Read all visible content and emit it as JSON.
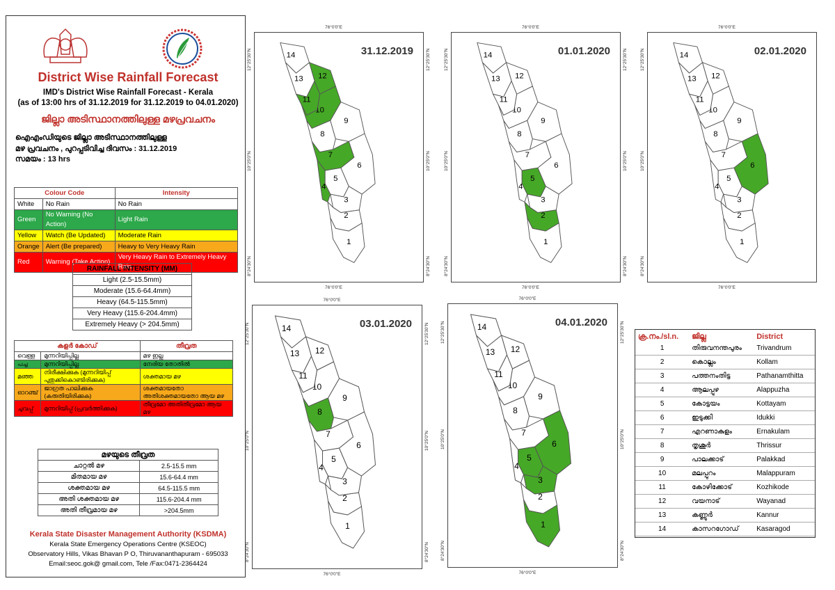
{
  "header": {
    "title": "District Wise Rainfall Forecast",
    "subtitle1": "IMD's District Wise Rainfall Forecast - Kerala",
    "subtitle2": "(as of 13:00 hrs of 31.12.2019  for 31.12.2019  to 04.01.2020)",
    "mal_title": "ജില്ലാ അടിസ്ഥാനത്തിലുള്ള മഴപ്രവചനം",
    "mal_info1": "ഐഎംഡിയുടെ  ജില്ലാ  അടിസ്ഥാനത്തിലുള്ള",
    "mal_info2": "മഴ  പ്രവചനം  , പുറപ്പടിവിച്ച   ദിവസം : 31.12.2019",
    "mal_info3": "സമയം : 13  hrs"
  },
  "colour_code": {
    "head_code": "Colour Code",
    "head_intensity": "Intensity",
    "rows": [
      {
        "c": "White",
        "code": "No Rain",
        "intensity": "No Rain",
        "bg": "#ffffff",
        "fg": "#000000"
      },
      {
        "c": "Green",
        "code": "No Warning (No Action)",
        "intensity": "Light Rain",
        "bg": "#2da84a",
        "fg": "#ffffff"
      },
      {
        "c": "Yellow",
        "code": "Watch (Be Updated)",
        "intensity": "Moderate Rain",
        "bg": "#ffff00",
        "fg": "#000000"
      },
      {
        "c": "Orange",
        "code": "Alert (Be prepared)",
        "intensity": "Heavy to Very Heavy Rain",
        "bg": "#f7a81b",
        "fg": "#000000"
      },
      {
        "c": "Red",
        "code": "Warning (Take Action)",
        "intensity": "Very Heavy Rain to Extremely Heavy Rain",
        "bg": "#ff0000",
        "fg": "#ffffff"
      }
    ]
  },
  "rainfall_intensity": {
    "head": "RAINFALL INTENSITY (MM)",
    "rows": [
      "Light (2.5-15.5mm)",
      "Moderate (15.6-64.4mm)",
      "Heavy (64.5-115.5mm)",
      "Very Heavy (115.6-204.4mm)",
      "Extremely Heavy (> 204.5mm)"
    ]
  },
  "mal_colour_code": {
    "head_code": "കളർ കോഡ്",
    "head_intensity": "തീവ്രത",
    "rows": [
      {
        "c": "വെള്ള",
        "code": "മുന്നറിയിപ്പില്ല",
        "intensity": "മഴ ഇല്ല",
        "bg": "#ffffff",
        "fg": "#000000"
      },
      {
        "c": "പച്ച",
        "code": "മുന്നറിയിപ്പില്ല",
        "intensity": "നേരിയ തോതിൽ",
        "bg": "#2da84a",
        "fg": "#000000"
      },
      {
        "c": "മഞ്ഞ",
        "code": "നിരീക്ഷിക്കുക (മുന്നറിയിപ്പ് പുതുക്കികൊണ്ടിരിക്കുക)",
        "intensity": "ശക്തമായ മഴ",
        "bg": "#ffff00",
        "fg": "#000000"
      },
      {
        "c": "ഓറഞ്ച്",
        "code": "ജാഗ്രത പാലിക്കുക (കരുതിയിരിക്കുക)",
        "intensity": "ശക്തമായതോ അതിശക്തമായതോ ആയ മഴ",
        "bg": "#f7a81b",
        "fg": "#000000"
      },
      {
        "c": "ചുവപ്പ്",
        "code": "മുന്നറിയിപ്പ് (പ്രവർത്തിക്കുക)",
        "intensity": "തീവ്രമോ അതിതീവ്രമോ ആയ മഴ",
        "bg": "#ff0000",
        "fg": "#000000"
      }
    ]
  },
  "mal_intensity": {
    "head": "മഴയുടെ തീവ്രത",
    "rows": [
      {
        "label": "ചാറ്റൽ മഴ",
        "value": "2.5-15.5 mm"
      },
      {
        "label": "മിതമായ മഴ",
        "value": "15.6-64.4 mm"
      },
      {
        "label": "ശക്തമായ മഴ",
        "value": "64.5-115.5 mm"
      },
      {
        "label": "അതി ശക്തമായ മഴ",
        "value": "115.6-204.4 mm"
      },
      {
        "label": "അതി തീവ്രമായ മഴ",
        "value": ">204.5mm"
      }
    ]
  },
  "footer": {
    "org": "Kerala State Disaster Management Authority (KSDMA)",
    "line2": "Kerala State Emergency Operations Centre (KSEOC)",
    "line3": "Observatory Hills, Vikas Bhavan P O, Thiruvananthapuram - 695033",
    "line4": "Email:seoc.gok@ gmail.com, Tele /Fax:0471-2364424"
  },
  "map_ticks": {
    "lon": "76°0'0\"E",
    "lat1": "12°25'30\"N",
    "lat2": "10°25'0\"N",
    "lat3": "8°24'30\"N"
  },
  "maps": [
    {
      "date": "31.12.2019",
      "green": [
        4,
        7,
        10,
        11,
        12
      ]
    },
    {
      "date": "01.01.2020",
      "green": [
        2,
        5
      ]
    },
    {
      "date": "02.01.2020",
      "green": [
        6
      ]
    },
    {
      "date": "03.01.2020",
      "green": [
        8
      ]
    },
    {
      "date": "04.01.2020",
      "green": [
        1,
        3,
        5,
        6
      ]
    }
  ],
  "district_table": {
    "head_no": "ക്ര.നം./sl.n.",
    "head_mal": "ജില്ല",
    "head_en": "District",
    "rows": [
      {
        "no": "1",
        "mal": "തിരുവനന്തപുരം",
        "en": "Trivandrum"
      },
      {
        "no": "2",
        "mal": "കൊല്ലം",
        "en": "Kollam"
      },
      {
        "no": "3",
        "mal": "പത്തനംതിട്ട",
        "en": "Pathanamthitta"
      },
      {
        "no": "4",
        "mal": "ആലപ്പുഴ",
        "en": "Alappuzha"
      },
      {
        "no": "5",
        "mal": "കോട്ടയം",
        "en": "Kottayam"
      },
      {
        "no": "6",
        "mal": "ഇടുക്കി",
        "en": "Idukki"
      },
      {
        "no": "7",
        "mal": "എറണാകുളം",
        "en": "Ernakulam"
      },
      {
        "no": "8",
        "mal": "തൃശൂർ",
        "en": "Thrissur"
      },
      {
        "no": "9",
        "mal": "പാലക്കാട്",
        "en": "Palakkad"
      },
      {
        "no": "10",
        "mal": "മലപ്പുറം",
        "en": "Malappuram"
      },
      {
        "no": "11",
        "mal": "കോഴിക്കോട്",
        "en": "Kozhikode"
      },
      {
        "no": "12",
        "mal": "വയനാട്",
        "en": "Wayanad"
      },
      {
        "no": "13",
        "mal": "കണ്ണൂർ",
        "en": "Kannur"
      },
      {
        "no": "14",
        "mal": "കാസറഗോഡ്",
        "en": "Kasaragod"
      }
    ]
  },
  "colors": {
    "green": "#46a827",
    "title_red": "#c0312b"
  }
}
